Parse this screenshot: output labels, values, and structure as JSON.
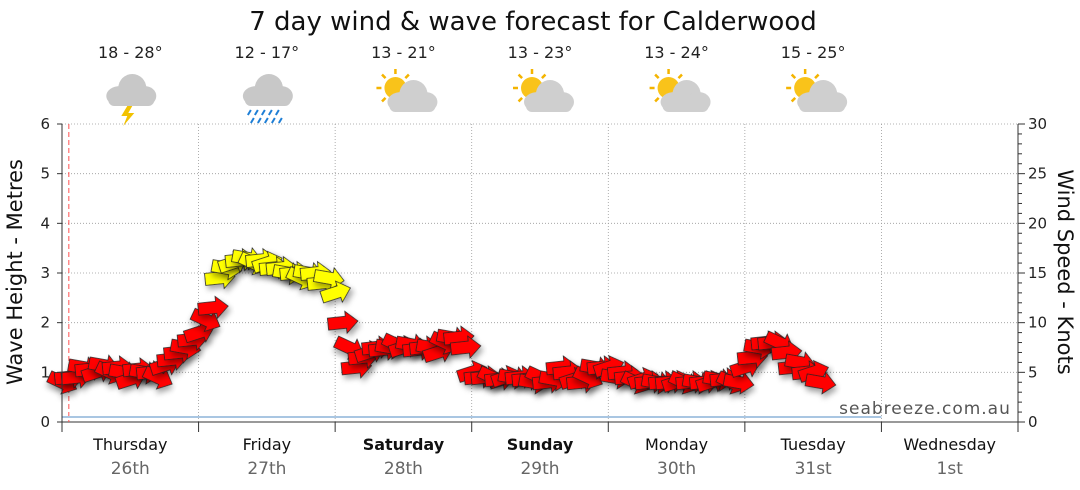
{
  "chart_data": {
    "type": "line",
    "title": "7 day wind & wave forecast for Calderwood",
    "ylabel_left": "Wave Height - Metres",
    "ylabel_right": "Wind Speed - Knots",
    "y_left_ticks": [
      "0",
      "1",
      "2",
      "3",
      "4",
      "5",
      "6"
    ],
    "y_right_ticks": [
      "0",
      "5",
      "10",
      "15",
      "20",
      "25",
      "30"
    ],
    "ylim_left": [
      0,
      6
    ],
    "ylim_right": [
      0,
      30
    ],
    "grid": true,
    "days": [
      {
        "day": "Thursday",
        "date": "26th",
        "weekend": false,
        "temp": "18 - 28°",
        "icon": "storm-cloud-icon"
      },
      {
        "day": "Friday",
        "date": "27th",
        "weekend": false,
        "temp": "12 - 17°",
        "icon": "rain-cloud-icon"
      },
      {
        "day": "Saturday",
        "date": "28th",
        "weekend": true,
        "temp": "13 - 21°",
        "icon": "partly-cloudy-icon"
      },
      {
        "day": "Sunday",
        "date": "29th",
        "weekend": true,
        "temp": "13 - 23°",
        "icon": "partly-cloudy-icon"
      },
      {
        "day": "Monday",
        "date": "30th",
        "weekend": false,
        "temp": "13 - 24°",
        "icon": "partly-cloudy-icon"
      },
      {
        "day": "Tuesday",
        "date": "31st",
        "weekend": false,
        "temp": "15 - 25°",
        "icon": "partly-cloudy-icon"
      },
      {
        "day": "Wednesday",
        "date": "1st",
        "weekend": false,
        "temp": "",
        "icon": ""
      }
    ],
    "wind_series": {
      "name": "Wind Speed",
      "units": "knots",
      "x_days": [
        0.0,
        0.05,
        0.1,
        0.15,
        0.2,
        0.25,
        0.3,
        0.35,
        0.4,
        0.45,
        0.5,
        0.55,
        0.6,
        0.65,
        0.7,
        0.75,
        0.8,
        0.85,
        0.9,
        0.95,
        1.0,
        1.05,
        1.1,
        1.15,
        1.2,
        1.25,
        1.3,
        1.35,
        1.4,
        1.45,
        1.5,
        1.55,
        1.6,
        1.65,
        1.7,
        1.75,
        1.8,
        1.85,
        1.9,
        1.95,
        2.0,
        2.05,
        2.1,
        2.15,
        2.2,
        2.25,
        2.3,
        2.35,
        2.4,
        2.45,
        2.5,
        2.55,
        2.6,
        2.65,
        2.7,
        2.75,
        2.8,
        2.85,
        2.9,
        2.95,
        3.0,
        3.05,
        3.1,
        3.15,
        3.2,
        3.25,
        3.3,
        3.35,
        3.4,
        3.45,
        3.5,
        3.55,
        3.6,
        3.65,
        3.7,
        3.75,
        3.8,
        3.85,
        3.9,
        3.95,
        4.0,
        4.05,
        4.1,
        4.15,
        4.2,
        4.25,
        4.3,
        4.35,
        4.4,
        4.45,
        4.5,
        4.55,
        4.6,
        4.65,
        4.7,
        4.75,
        4.8,
        4.85,
        4.9,
        4.95,
        5.0,
        5.05,
        5.1,
        5.15,
        5.2,
        5.25,
        5.3,
        5.35,
        5.4,
        5.45,
        5.5,
        5.55,
        5.6,
        5.65,
        5.7,
        5.75,
        5.8,
        5.85,
        5.9,
        5.95,
        6.0
      ],
      "values": [
        4.0,
        4.5,
        4.5,
        5.5,
        5.3,
        5.0,
        5.7,
        5.0,
        5.5,
        5.0,
        4.3,
        5.3,
        5.0,
        5.0,
        4.5,
        5.7,
        6.3,
        7.0,
        7.5,
        8.3,
        9.0,
        10.3,
        11.5,
        14.5,
        15.5,
        16.0,
        16.3,
        16.5,
        16.0,
        16.3,
        16.0,
        15.5,
        15.5,
        15.0,
        15.0,
        14.5,
        15.0,
        15.0,
        14.0,
        14.5,
        13.0,
        10.0,
        7.5,
        5.5,
        6.5,
        7.0,
        7.5,
        7.3,
        7.5,
        7.8,
        7.5,
        7.8,
        7.3,
        7.5,
        7.5,
        7.0,
        8.0,
        8.5,
        8.5,
        7.5,
        5.0,
        4.5,
        4.5,
        4.5,
        4.3,
        4.5,
        4.5,
        4.5,
        4.3,
        4.0,
        4.5,
        4.0,
        4.3,
        5.5,
        5.0,
        4.3,
        4.0,
        4.5,
        5.5,
        5.5,
        5.5,
        4.5,
        5.0,
        4.5,
        4.0,
        4.3,
        4.0,
        4.0,
        4.0,
        4.0,
        4.0,
        4.0,
        4.0,
        4.0,
        4.0,
        4.0,
        4.3,
        4.3,
        4.0,
        4.0,
        5.5,
        6.5,
        7.5,
        8.0,
        8.0,
        8.0,
        7.0,
        5.5,
        6.0,
        5.0,
        5.0,
        4.0,
        null,
        null,
        null,
        null,
        null,
        null,
        null,
        null,
        null
      ],
      "color_low": "#ff0000",
      "color_high": "#ffff00",
      "threshold_knots": 13
    },
    "wave_series": {
      "name": "Wave Height",
      "units": "m",
      "x_days": [
        0.0,
        1.0,
        2.0,
        3.0,
        4.0,
        5.0,
        6.0
      ],
      "values": [
        0.1,
        0.1,
        0.1,
        0.1,
        0.1,
        0.1,
        0.1
      ],
      "color": "#a9c6e2"
    },
    "now_marker_day": 0.05,
    "brand": "seabreeze.com.au"
  },
  "colors": {
    "arrow_red": "#ff0000",
    "arrow_yellow": "#ffff00",
    "arrow_outline": "#222222",
    "wave_line": "#a9c6e2",
    "now_line": "#ff5050",
    "grid": "#9a9a9a"
  }
}
